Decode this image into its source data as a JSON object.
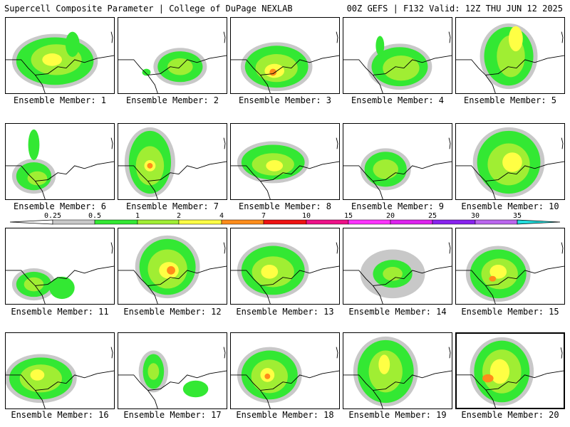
{
  "header": {
    "left_title": "Supercell Composite Parameter | College of DuPage NEXLAB",
    "right_title": "00Z GEFS | F132 Valid: 12Z THU JUN 12 2025"
  },
  "legend": {
    "ticks": [
      "0.25",
      "0.5",
      "1",
      "2",
      "4",
      "7",
      "10",
      "15",
      "20",
      "25",
      "30",
      "35"
    ],
    "colors": [
      "#c8c8c8",
      "#33e833",
      "#a0ee33",
      "#ffff44",
      "#ff8c1a",
      "#ee1111",
      "#ee1188",
      "#ff33ff",
      "#dd22ee",
      "#8822ee",
      "#bb66ee",
      "#22dddd"
    ]
  },
  "panels": [
    {
      "label": "Ensemble Member: 1"
    },
    {
      "label": "Ensemble Member: 2"
    },
    {
      "label": "Ensemble Member: 3"
    },
    {
      "label": "Ensemble Member: 4"
    },
    {
      "label": "Ensemble Member: 5"
    },
    {
      "label": "Ensemble Member: 6"
    },
    {
      "label": "Ensemble Member: 7"
    },
    {
      "label": "Ensemble Member: 8"
    },
    {
      "label": "Ensemble Member: 9"
    },
    {
      "label": "Ensemble Member: 10"
    },
    {
      "label": "Ensemble Member: 11"
    },
    {
      "label": "Ensemble Member: 12"
    },
    {
      "label": "Ensemble Member: 13"
    },
    {
      "label": "Ensemble Member: 14"
    },
    {
      "label": "Ensemble Member: 15"
    },
    {
      "label": "Ensemble Member: 16"
    },
    {
      "label": "Ensemble Member: 17"
    },
    {
      "label": "Ensemble Member: 18"
    },
    {
      "label": "Ensemble Member: 19"
    },
    {
      "label": "Ensemble Member: 20"
    }
  ]
}
